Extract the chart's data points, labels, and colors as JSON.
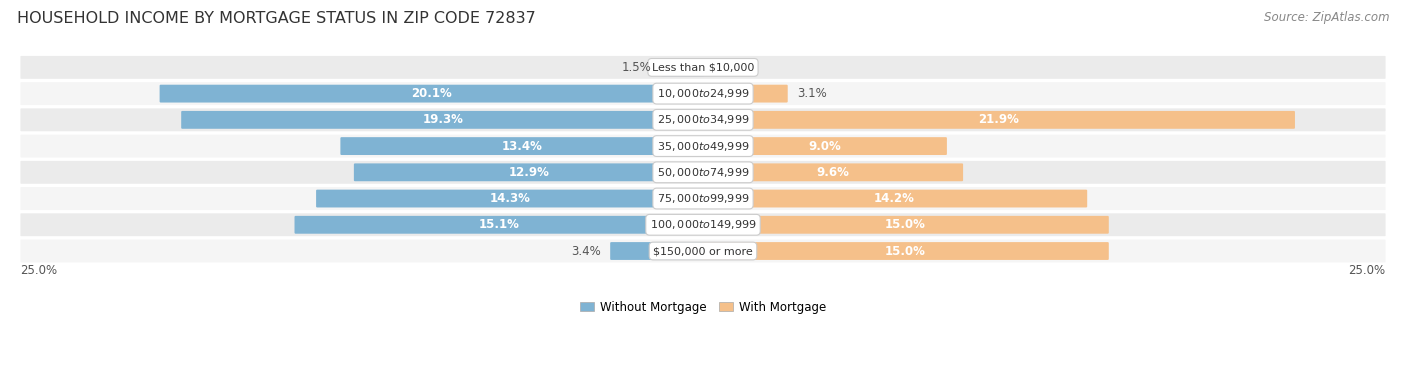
{
  "title": "HOUSEHOLD INCOME BY MORTGAGE STATUS IN ZIP CODE 72837",
  "source": "Source: ZipAtlas.com",
  "categories": [
    "Less than $10,000",
    "$10,000 to $24,999",
    "$25,000 to $34,999",
    "$35,000 to $49,999",
    "$50,000 to $74,999",
    "$75,000 to $99,999",
    "$100,000 to $149,999",
    "$150,000 or more"
  ],
  "without_mortgage": [
    1.5,
    20.1,
    19.3,
    13.4,
    12.9,
    14.3,
    15.1,
    3.4
  ],
  "with_mortgage": [
    0.0,
    3.1,
    21.9,
    9.0,
    9.6,
    14.2,
    15.0,
    15.0
  ],
  "color_without": "#7fb3d3",
  "color_with": "#f5c08a",
  "color_without_dark": "#5a9ab8",
  "bg_row_even": "#ebebeb",
  "bg_row_odd": "#f5f5f5",
  "axis_label_left": "25.0%",
  "axis_label_right": "25.0%",
  "max_val": 25.0,
  "title_fontsize": 11.5,
  "source_fontsize": 8.5,
  "bar_label_fontsize": 8.5,
  "category_fontsize": 8.0
}
